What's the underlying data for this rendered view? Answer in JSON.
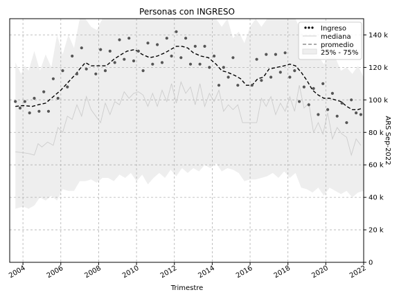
{
  "chart_data": {
    "type": "line",
    "title": "Personas con INGRESO",
    "xlabel": "Trimestre",
    "ylabel_right": "ARS Sep-2022",
    "xlim": [
      2003.3,
      2022.0
    ],
    "ylim": [
      0,
      150000
    ],
    "x_ticks": [
      2004,
      2006,
      2008,
      2010,
      2012,
      2014,
      2016,
      2018,
      2020,
      2022
    ],
    "x_tick_labels": [
      "2004",
      "2006",
      "2008",
      "2010",
      "2012",
      "2014",
      "2016",
      "2018",
      "2020",
      "2022"
    ],
    "y_ticks": [
      0,
      20000,
      40000,
      60000,
      80000,
      100000,
      120000,
      140000
    ],
    "y_tick_labels": [
      "0",
      "20 k",
      "40 k",
      "60 k",
      "80 k",
      "100 k",
      "120 k",
      "140 k"
    ],
    "grid": true,
    "legend_position": "top-right",
    "legend": [
      "Ingreso",
      "mediana",
      "promedio",
      "25% - 75%"
    ],
    "colors": {
      "ingreso": "#555555",
      "mediana": "#cccccc",
      "promedio": "#000000",
      "band": "#eeeeee",
      "grid": "#b0b0b0"
    },
    "series": [
      {
        "name": "Ingreso",
        "style": "points",
        "x": [
          2003.6,
          2003.85,
          2004.1,
          2004.35,
          2004.6,
          2004.85,
          2005.1,
          2005.35,
          2005.6,
          2005.85,
          2006.1,
          2006.35,
          2006.6,
          2006.85,
          2007.1,
          2007.35,
          2007.85,
          2008.1,
          2008.35,
          2008.6,
          2008.85,
          2009.1,
          2009.35,
          2009.6,
          2009.85,
          2010.1,
          2010.35,
          2010.6,
          2010.85,
          2011.1,
          2011.35,
          2011.6,
          2011.85,
          2012.1,
          2012.35,
          2012.6,
          2012.85,
          2013.1,
          2013.35,
          2013.6,
          2013.85,
          2014.1,
          2014.35,
          2014.6,
          2014.85,
          2015.1,
          2015.35,
          2016.1,
          2016.35,
          2016.6,
          2016.85,
          2017.1,
          2017.35,
          2017.6,
          2017.85,
          2018.1,
          2018.35,
          2018.6,
          2018.85,
          2019.1,
          2019.35,
          2019.6,
          2019.85,
          2020.1,
          2020.35,
          2020.6,
          2020.85,
          2021.1,
          2021.35,
          2021.6,
          2021.85
        ],
        "values": [
          99000,
          95000,
          99000,
          92000,
          101000,
          93000,
          105000,
          93000,
          113000,
          101000,
          118000,
          108000,
          127000,
          116000,
          132000,
          119000,
          116000,
          131000,
          118000,
          130000,
          123000,
          137000,
          125000,
          138000,
          124000,
          130000,
          118000,
          135000,
          122000,
          134000,
          123000,
          138000,
          127000,
          142000,
          126000,
          138000,
          122000,
          133000,
          122000,
          133000,
          120000,
          127000,
          109000,
          120000,
          114000,
          126000,
          109000,
          109000,
          125000,
          112000,
          128000,
          114000,
          128000,
          117000,
          129000,
          114000,
          118000,
          99000,
          108000,
          97000,
          107000,
          91000,
          110000,
          94000,
          104000,
          90000,
          98000,
          86000,
          100000,
          92000,
          91000
        ]
      },
      {
        "name": "mediana",
        "style": "thin-line",
        "x": [
          2003.6,
          2004.0,
          2004.3,
          2004.6,
          2004.8,
          2005.0,
          2005.3,
          2005.6,
          2005.85,
          2006.1,
          2006.35,
          2006.6,
          2006.85,
          2007.1,
          2007.35,
          2007.6,
          2007.85,
          2008.1,
          2008.35,
          2008.6,
          2008.85,
          2009.1,
          2009.35,
          2009.6,
          2009.85,
          2010.1,
          2010.35,
          2010.6,
          2010.85,
          2011.1,
          2011.35,
          2011.6,
          2011.85,
          2012.1,
          2012.35,
          2012.6,
          2012.85,
          2013.1,
          2013.35,
          2013.6,
          2013.85,
          2014.1,
          2014.35,
          2014.6,
          2014.85,
          2015.1,
          2015.35,
          2015.6,
          2016.0,
          2016.35,
          2016.6,
          2016.85,
          2017.1,
          2017.35,
          2017.6,
          2017.85,
          2018.1,
          2018.35,
          2018.6,
          2018.85,
          2019.1,
          2019.35,
          2019.6,
          2019.85,
          2020.1,
          2020.35,
          2020.6,
          2020.85,
          2021.1,
          2021.35,
          2021.6,
          2021.85
        ],
        "values": [
          68000,
          67500,
          67000,
          66000,
          73000,
          71000,
          74000,
          72000,
          83000,
          80000,
          90000,
          88000,
          97000,
          90000,
          102000,
          94000,
          90000,
          86000,
          98000,
          91000,
          99000,
          97000,
          105000,
          101000,
          104000,
          105000,
          103000,
          96000,
          104000,
          96000,
          106000,
          99000,
          110000,
          98000,
          111000,
          104000,
          108000,
          97000,
          110000,
          96000,
          104000,
          99000,
          106000,
          93000,
          97000,
          94000,
          97000,
          86000,
          86000,
          86000,
          101000,
          96000,
          102000,
          91000,
          98000,
          93000,
          102000,
          93000,
          109000,
          95000,
          98000,
          80000,
          86000,
          79000,
          92000,
          76000,
          83000,
          79000,
          77000,
          66000,
          76000,
          72000
        ]
      },
      {
        "name": "promedio",
        "style": "dashed-line",
        "x": [
          2003.6,
          2004.0,
          2004.5,
          2004.8,
          2005.2,
          2005.6,
          2006.0,
          2006.4,
          2006.8,
          2007.0,
          2007.3,
          2007.6,
          2008.0,
          2008.4,
          2008.8,
          2009.2,
          2009.5,
          2009.9,
          2010.3,
          2010.7,
          2011.1,
          2011.5,
          2011.8,
          2012.1,
          2012.4,
          2012.7,
          2013.0,
          2013.4,
          2013.8,
          2014.2,
          2014.5,
          2014.8,
          2015.2,
          2015.5,
          2015.8,
          2016.1,
          2016.4,
          2016.7,
          2017.0,
          2017.4,
          2017.8,
          2018.1,
          2018.4,
          2018.7,
          2019.0,
          2019.3,
          2019.6,
          2019.9,
          2020.2,
          2020.5,
          2020.8,
          2021.1,
          2021.4,
          2021.7,
          2021.95
        ],
        "values": [
          96000,
          96500,
          96000,
          97000,
          98000,
          102000,
          106000,
          111000,
          116000,
          119000,
          123000,
          121000,
          121000,
          121000,
          125000,
          128000,
          130000,
          131000,
          128000,
          126000,
          127000,
          129000,
          131000,
          133000,
          133000,
          132000,
          129000,
          127000,
          126000,
          122000,
          118000,
          117000,
          115000,
          113000,
          109000,
          109000,
          113000,
          114000,
          119000,
          120000,
          121000,
          122000,
          121000,
          117000,
          112000,
          106000,
          103000,
          101000,
          101000,
          100000,
          99000,
          96000,
          94000,
          94000,
          95000
        ]
      },
      {
        "name": "25% - 75%",
        "style": "band",
        "x": [
          2003.6,
          2003.9,
          2004.1,
          2004.3,
          2004.6,
          2004.9,
          2005.2,
          2005.5,
          2005.8,
          2006.1,
          2006.4,
          2006.7,
          2007.0,
          2007.3,
          2007.6,
          2007.9,
          2008.2,
          2008.5,
          2008.8,
          2009.1,
          2009.4,
          2009.7,
          2010.0,
          2010.3,
          2010.6,
          2010.9,
          2011.2,
          2011.5,
          2011.8,
          2012.1,
          2012.4,
          2012.7,
          2013.0,
          2013.3,
          2013.6,
          2013.9,
          2014.2,
          2014.5,
          2014.8,
          2015.1,
          2015.4,
          2015.7,
          2016.0,
          2016.3,
          2016.6,
          2016.9,
          2017.2,
          2017.5,
          2017.8,
          2018.1,
          2018.4,
          2018.7,
          2019.0,
          2019.3,
          2019.6,
          2019.9,
          2020.2,
          2020.5,
          2020.8,
          2021.1,
          2021.4,
          2021.7,
          2022.0
        ],
        "low": [
          33000,
          34000,
          34000,
          33000,
          35000,
          40000,
          38000,
          41000,
          38000,
          45000,
          44000,
          44000,
          50000,
          50000,
          51000,
          49000,
          52000,
          52000,
          50000,
          54000,
          52000,
          55000,
          50000,
          54000,
          48000,
          52000,
          55000,
          52000,
          57000,
          53000,
          58000,
          55000,
          58000,
          56000,
          60000,
          58000,
          61000,
          56000,
          58000,
          57000,
          55000,
          50000,
          51000,
          51000,
          52000,
          53000,
          55000,
          52000,
          56000,
          52000,
          55000,
          46000,
          45000,
          43000,
          46000,
          41000,
          46000,
          44000,
          42000,
          44000,
          40000,
          43000,
          44000
        ],
        "high": [
          123000,
          116000,
          121000,
          118000,
          130000,
          118000,
          128000,
          120000,
          140000,
          128000,
          140000,
          132000,
          150000,
          150000,
          145000,
          143000,
          150000,
          150000,
          150000,
          150000,
          150000,
          150000,
          150000,
          150000,
          150000,
          150000,
          150000,
          150000,
          150000,
          150000,
          150000,
          150000,
          150000,
          150000,
          150000,
          150000,
          150000,
          145000,
          150000,
          138000,
          142000,
          135000,
          145000,
          150000,
          145000,
          150000,
          150000,
          150000,
          150000,
          150000,
          150000,
          142000,
          136000,
          128000,
          127000,
          122000,
          128000,
          126000,
          118000,
          120000,
          116000,
          121000,
          114000
        ]
      }
    ]
  }
}
